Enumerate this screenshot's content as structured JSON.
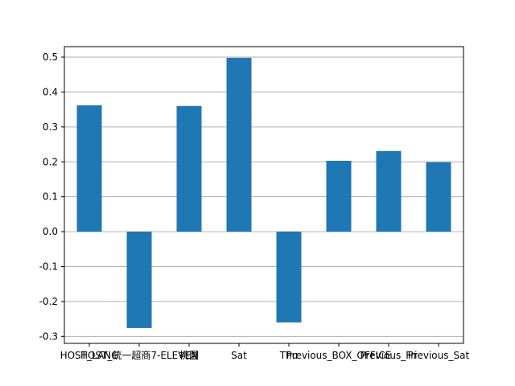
{
  "chart_data": {
    "type": "bar",
    "categories": [
      "HOST_LANG",
      "HOST_統一超商7-ELEVEN",
      "桃園",
      "Sat",
      "Thu",
      "Previous_BOX_OFFICE",
      "Previous_Fri",
      "Previous_Sat"
    ],
    "values": [
      0.362,
      -0.276,
      0.36,
      0.498,
      -0.26,
      0.203,
      0.231,
      0.199
    ],
    "title": "",
    "xlabel": "",
    "ylabel": "",
    "ylim": [
      -0.32,
      0.53
    ],
    "yticks": [
      "0.5",
      "0.4",
      "0.3",
      "0.2",
      "0.1",
      "0.0",
      "-0.1",
      "-0.2",
      "-0.3"
    ],
    "ytick_values": [
      0.5,
      0.4,
      0.3,
      0.2,
      0.1,
      0.0,
      -0.1,
      -0.2,
      -0.3
    ],
    "grid": "horizontal",
    "bar_color": "#1f77b4",
    "grid_color": "#b0b0b0"
  }
}
